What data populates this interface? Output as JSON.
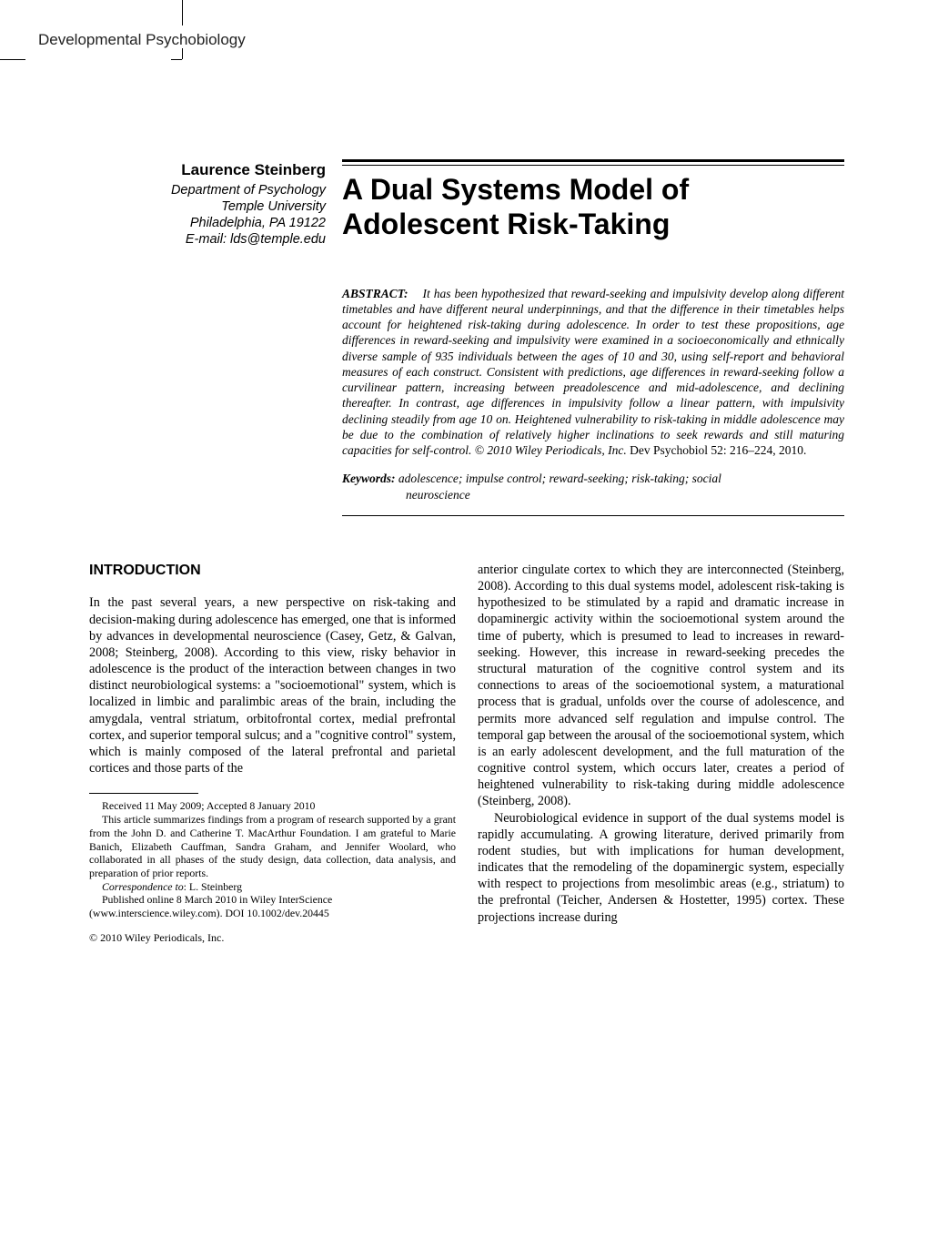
{
  "journal": "Developmental Psychobiology",
  "author": {
    "name": "Laurence Steinberg",
    "affiliation_lines": [
      "Department of Psychology",
      "Temple University",
      "Philadelphia, PA 19122",
      "E-mail: lds@temple.edu"
    ]
  },
  "title": "A Dual Systems Model of Adolescent Risk-Taking",
  "abstract": {
    "label": "ABSTRACT:",
    "text": "It has been hypothesized that reward-seeking and impulsivity develop along different timetables and have different neural underpinnings, and that the difference in their timetables helps account for heightened risk-taking during adolescence. In order to test these propositions, age differences in reward-seeking and impulsivity were examined in a socioeconomically and ethnically diverse sample of 935 individuals between the ages of 10 and 30, using self-report and behavioral measures of each construct. Consistent with predictions, age differences in reward-seeking follow a curvilinear pattern, increasing between preadolescence and mid-adolescence, and declining thereafter. In contrast, age differences in impulsivity follow a linear pattern, with impulsivity declining steadily from age 10 on. Heightened vulnerability to risk-taking in middle adolescence may be due to the combination of relatively higher inclinations to seek rewards and still maturing capacities for self-control. © 2010 Wiley Periodicals, Inc.",
    "tail": "Dev Psychobiol 52: 216–224, 2010."
  },
  "keywords": {
    "label": "Keywords:",
    "line1": "adolescence; impulse control; reward-seeking; risk-taking; social",
    "line2": "neuroscience"
  },
  "sections": {
    "intro_heading": "INTRODUCTION",
    "left_para1": "In the past several years, a new perspective on risk-taking and decision-making during adolescence has emerged, one that is informed by advances in developmental neuroscience (Casey, Getz, & Galvan, 2008; Steinberg, 2008). According to this view, risky behavior in adolescence is the product of the interaction between changes in two distinct neurobiological systems: a \"socioemotional\" system, which is localized in limbic and paralimbic areas of the brain, including the amygdala, ventral striatum, orbitofrontal cortex, medial prefrontal cortex, and superior temporal sulcus; and a \"cognitive control\" system, which is mainly composed of the lateral prefrontal and parietal cortices and those parts of the",
    "right_para1": "anterior cingulate cortex to which they are interconnected (Steinberg, 2008). According to this dual systems model, adolescent risk-taking is hypothesized to be stimulated by a rapid and dramatic increase in dopaminergic activity within the socioemotional system around the time of puberty, which is presumed to lead to increases in reward-seeking. However, this increase in reward-seeking precedes the structural maturation of the cognitive control system and its connections to areas of the socioemotional system, a maturational process that is gradual, unfolds over the course of adolescence, and permits more advanced self regulation and impulse control. The temporal gap between the arousal of the socioemotional system, which is an early adolescent development, and the full maturation of the cognitive control system, which occurs later, creates a period of heightened vulnerability to risk-taking during middle adolescence (Steinberg, 2008).",
    "right_para2": "Neurobiological evidence in support of the dual systems model is rapidly accumulating. A growing literature, derived primarily from rodent studies, but with implications for human development, indicates that the remodeling of the dopaminergic system, especially with respect to projections from mesolimbic areas (e.g., striatum) to the prefrontal (Teicher, Andersen & Hostetter, 1995) cortex. These projections increase during"
  },
  "footnotes": {
    "received": "Received 11 May 2009; Accepted 8 January 2010",
    "ack": "This article summarizes findings from a program of research supported by a grant from the John D. and Catherine T. MacArthur Foundation. I am grateful to Marie Banich, Elizabeth Cauffman, Sandra Graham, and Jennifer Woolard, who collaborated in all phases of the study design, data collection, data analysis, and preparation of prior reports.",
    "corr_label": "Correspondence to",
    "corr_text": ": L. Steinberg",
    "pub": "Published online 8 March 2010 in Wiley InterScience",
    "pub2": "(www.interscience.wiley.com). DOI 10.1002/dev.20445"
  },
  "copyright": "© 2010 Wiley Periodicals, Inc."
}
